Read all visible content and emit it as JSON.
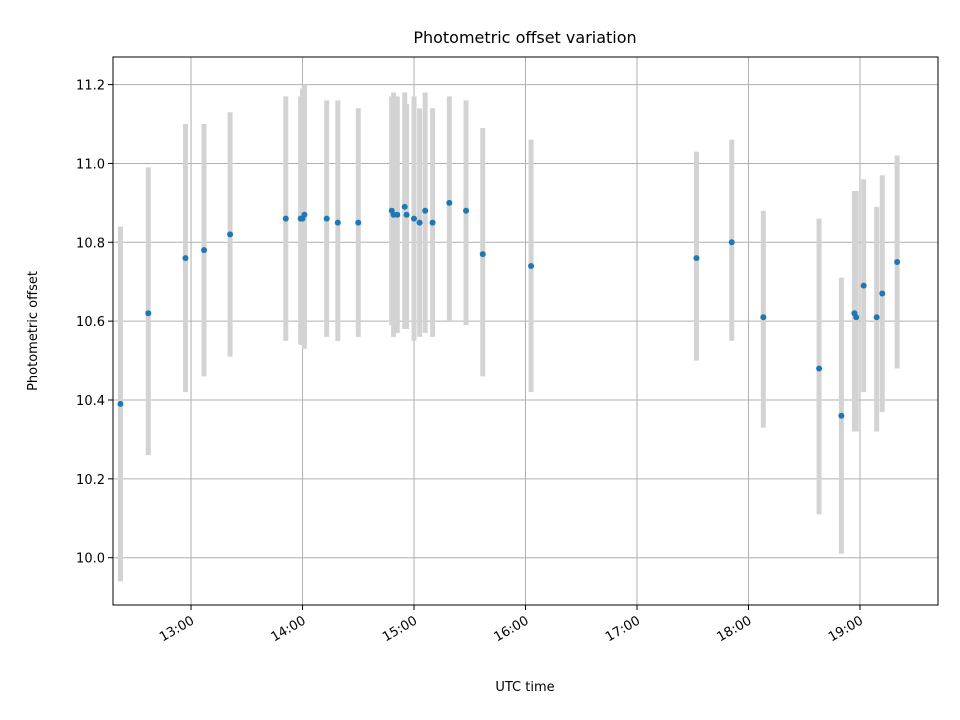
{
  "chart_data": {
    "type": "scatter",
    "title": "Photometric offset variation",
    "xlabel": "UTC time",
    "ylabel": "Photometric offset",
    "xlim": [
      "12:18",
      "19:42"
    ],
    "ylim": [
      9.88,
      11.27
    ],
    "x_ticks": [
      "13:00",
      "14:00",
      "15:00",
      "16:00",
      "17:00",
      "18:00",
      "19:00"
    ],
    "y_ticks": [
      10.0,
      10.2,
      10.4,
      10.6,
      10.8,
      11.0,
      11.2
    ],
    "grid": true,
    "colors": {
      "points": "#1f77b4",
      "error_bars": "#d3d3d3",
      "grid": "#b0b0b0"
    },
    "series": [
      {
        "points": [
          {
            "x": "12:22",
            "y": 10.39,
            "lo": 9.94,
            "hi": 10.84
          },
          {
            "x": "12:37",
            "y": 10.62,
            "lo": 10.26,
            "hi": 10.99
          },
          {
            "x": "12:57",
            "y": 10.76,
            "lo": 10.42,
            "hi": 11.1
          },
          {
            "x": "13:07",
            "y": 10.78,
            "lo": 10.46,
            "hi": 11.1
          },
          {
            "x": "13:21",
            "y": 10.82,
            "lo": 10.51,
            "hi": 11.13
          },
          {
            "x": "13:51",
            "y": 10.86,
            "lo": 10.55,
            "hi": 11.17
          },
          {
            "x": "13:59",
            "y": 10.86,
            "lo": 10.54,
            "hi": 11.17
          },
          {
            "x": "14:00",
            "y": 10.86,
            "lo": 10.54,
            "hi": 11.19
          },
          {
            "x": "14:01",
            "y": 10.87,
            "lo": 10.53,
            "hi": 11.2
          },
          {
            "x": "14:13",
            "y": 10.86,
            "lo": 10.56,
            "hi": 11.16
          },
          {
            "x": "14:19",
            "y": 10.85,
            "lo": 10.55,
            "hi": 11.16
          },
          {
            "x": "14:30",
            "y": 10.85,
            "lo": 10.56,
            "hi": 11.14
          },
          {
            "x": "14:48",
            "y": 10.88,
            "lo": 10.59,
            "hi": 11.17
          },
          {
            "x": "14:49",
            "y": 10.87,
            "lo": 10.56,
            "hi": 11.18
          },
          {
            "x": "14:51",
            "y": 10.87,
            "lo": 10.57,
            "hi": 11.17
          },
          {
            "x": "14:55",
            "y": 10.89,
            "lo": 10.58,
            "hi": 11.18
          },
          {
            "x": "14:56",
            "y": 10.87,
            "lo": 10.58,
            "hi": 11.15
          },
          {
            "x": "15:00",
            "y": 10.86,
            "lo": 10.55,
            "hi": 11.17
          },
          {
            "x": "15:03",
            "y": 10.85,
            "lo": 10.56,
            "hi": 11.14
          },
          {
            "x": "15:06",
            "y": 10.88,
            "lo": 10.57,
            "hi": 11.18
          },
          {
            "x": "15:10",
            "y": 10.85,
            "lo": 10.56,
            "hi": 11.14
          },
          {
            "x": "15:19",
            "y": 10.9,
            "lo": 10.6,
            "hi": 11.17
          },
          {
            "x": "15:28",
            "y": 10.88,
            "lo": 10.59,
            "hi": 11.16
          },
          {
            "x": "15:37",
            "y": 10.77,
            "lo": 10.46,
            "hi": 11.09
          },
          {
            "x": "16:03",
            "y": 10.74,
            "lo": 10.42,
            "hi": 11.06
          },
          {
            "x": "17:32",
            "y": 10.76,
            "lo": 10.5,
            "hi": 11.03
          },
          {
            "x": "17:51",
            "y": 10.8,
            "lo": 10.55,
            "hi": 11.06
          },
          {
            "x": "18:08",
            "y": 10.61,
            "lo": 10.33,
            "hi": 10.88
          },
          {
            "x": "18:38",
            "y": 10.48,
            "lo": 10.11,
            "hi": 10.86
          },
          {
            "x": "18:50",
            "y": 10.36,
            "lo": 10.01,
            "hi": 10.71
          },
          {
            "x": "18:57",
            "y": 10.62,
            "lo": 10.32,
            "hi": 10.93
          },
          {
            "x": "18:58",
            "y": 10.61,
            "lo": 10.32,
            "hi": 10.93
          },
          {
            "x": "19:02",
            "y": 10.69,
            "lo": 10.42,
            "hi": 10.96
          },
          {
            "x": "19:09",
            "y": 10.61,
            "lo": 10.32,
            "hi": 10.89
          },
          {
            "x": "19:12",
            "y": 10.67,
            "lo": 10.37,
            "hi": 10.97
          },
          {
            "x": "19:20",
            "y": 10.75,
            "lo": 10.48,
            "hi": 11.02
          }
        ]
      }
    ]
  }
}
